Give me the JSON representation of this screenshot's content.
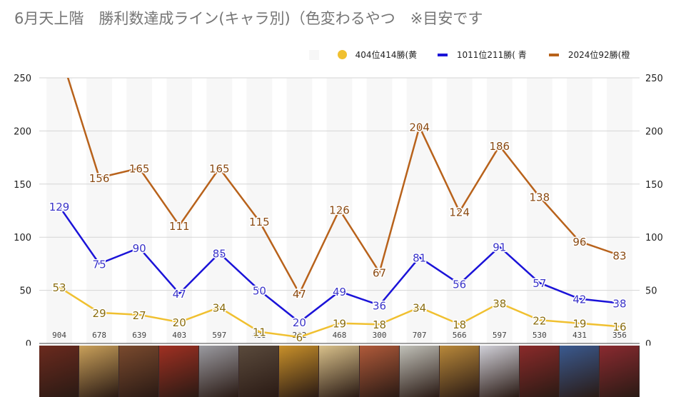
{
  "title": "6月天上階　勝利数達成ライン(キャラ別)（色変わるやつ　※目安です",
  "chart_data": {
    "type": "line",
    "title": "6月天上階　勝利数達成ライン(キャラ別)（色変わるやつ　※目安です",
    "ylim": [
      0,
      250
    ],
    "yticks": [
      0,
      50,
      100,
      150,
      200,
      250
    ],
    "grid": true,
    "legend_position": "top-right",
    "background_bars": {
      "color": "#f7f7f7",
      "values": [
        904,
        678,
        639,
        403,
        597,
        435,
        262,
        468,
        300,
        707,
        566,
        597,
        530,
        431,
        356
      ]
    },
    "series": [
      {
        "name": "404位414勝(黄",
        "color": "#f0c030",
        "label_color": "#8a6d10",
        "marker": "circle",
        "values": [
          53,
          29,
          27,
          20,
          34,
          11,
          6,
          19,
          18,
          34,
          18,
          38,
          22,
          19,
          16
        ]
      },
      {
        "name": "1011位211勝( 青",
        "color": "#1b13d8",
        "label_color": "#3a34c8",
        "marker": "line",
        "values": [
          129,
          75,
          90,
          47,
          85,
          50,
          20,
          49,
          36,
          81,
          56,
          91,
          57,
          42,
          38
        ]
      },
      {
        "name": "2024位92勝(橙",
        "color": "#b8621b",
        "label_color": "#8a4a12",
        "marker": "line",
        "values": [
          276,
          156,
          165,
          111,
          165,
          115,
          47,
          126,
          67,
          204,
          124,
          186,
          138,
          96,
          83
        ]
      }
    ],
    "data_labels_series2": [
      "",
      "156",
      "165",
      "111",
      "165",
      "115",
      "47",
      "126",
      "67",
      "204",
      "124",
      "186",
      "138",
      "96",
      "83"
    ]
  },
  "portraits": [
    {
      "color": "#6b2a1e"
    },
    {
      "color": "#c9a05a"
    },
    {
      "color": "#7a4a2e"
    },
    {
      "color": "#a03022"
    },
    {
      "color": "#9a9aa0"
    },
    {
      "color": "#5a4a3c"
    },
    {
      "color": "#c8902a"
    },
    {
      "color": "#d8c08a"
    },
    {
      "color": "#b05a3a"
    },
    {
      "color": "#c0c0b8"
    },
    {
      "color": "#b8883a"
    },
    {
      "color": "#d0d0d8"
    },
    {
      "color": "#8a2a2a"
    },
    {
      "color": "#3a5a90"
    },
    {
      "color": "#8a2a30"
    }
  ]
}
